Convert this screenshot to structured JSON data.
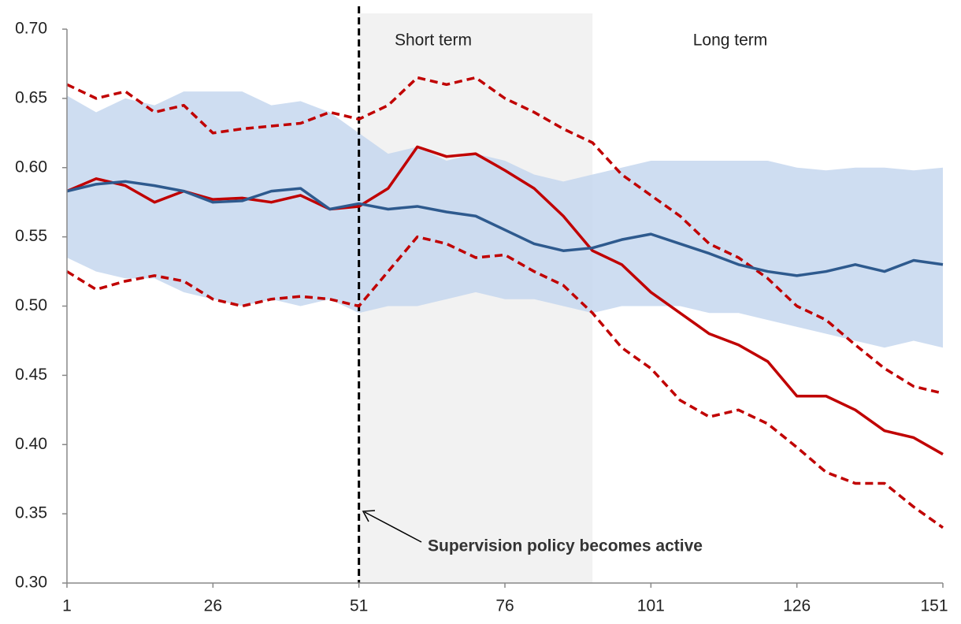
{
  "chart_data": {
    "type": "line",
    "x": [
      1,
      6,
      11,
      16,
      21,
      26,
      31,
      36,
      41,
      46,
      51,
      56,
      61,
      66,
      71,
      76,
      81,
      86,
      91,
      96,
      101,
      106,
      111,
      116,
      121,
      126,
      131,
      136,
      141,
      146,
      151
    ],
    "xlim": [
      1,
      151
    ],
    "xticks": [
      1,
      26,
      51,
      76,
      101,
      126,
      151
    ],
    "ylim": [
      0.3,
      0.7
    ],
    "yticks": [
      {
        "value": 0.3,
        "label": "0.30"
      },
      {
        "value": 0.35,
        "label": "0.35"
      },
      {
        "value": 0.4,
        "label": "0.40"
      },
      {
        "value": 0.45,
        "label": "0.45"
      },
      {
        "value": 0.5,
        "label": "0.50"
      },
      {
        "value": 0.55,
        "label": "0.55"
      },
      {
        "value": 0.6,
        "label": "0.60"
      },
      {
        "value": 0.65,
        "label": "0.65"
      },
      {
        "value": 0.7,
        "label": "0.70"
      }
    ],
    "band": {
      "color": "#c5d7ef",
      "upper": [
        0.652,
        0.64,
        0.65,
        0.645,
        0.655,
        0.655,
        0.655,
        0.645,
        0.648,
        0.64,
        0.625,
        0.61,
        0.615,
        0.605,
        0.61,
        0.605,
        0.595,
        0.59,
        0.595,
        0.6,
        0.605,
        0.605,
        0.605,
        0.605,
        0.605,
        0.6,
        0.598,
        0.6,
        0.6,
        0.598,
        0.6
      ],
      "lower": [
        0.535,
        0.525,
        0.52,
        0.52,
        0.51,
        0.505,
        0.5,
        0.505,
        0.5,
        0.505,
        0.495,
        0.5,
        0.5,
        0.505,
        0.51,
        0.505,
        0.505,
        0.5,
        0.495,
        0.5,
        0.5,
        0.5,
        0.495,
        0.495,
        0.49,
        0.485,
        0.48,
        0.475,
        0.47,
        0.475,
        0.47
      ]
    },
    "series": [
      {
        "color": "#c00000",
        "dashed": true,
        "values": [
          0.66,
          0.65,
          0.655,
          0.64,
          0.645,
          0.625,
          0.628,
          0.63,
          0.632,
          0.64,
          0.635,
          0.645,
          0.665,
          0.66,
          0.665,
          0.65,
          0.64,
          0.628,
          0.618,
          0.595,
          0.58,
          0.565,
          0.545,
          0.535,
          0.52,
          0.5,
          0.49,
          0.472,
          0.455,
          0.442,
          0.437
        ]
      },
      {
        "color": "#c00000",
        "dashed": true,
        "values": [
          0.525,
          0.512,
          0.518,
          0.522,
          0.518,
          0.505,
          0.5,
          0.505,
          0.507,
          0.505,
          0.5,
          0.525,
          0.55,
          0.545,
          0.535,
          0.537,
          0.525,
          0.515,
          0.495,
          0.47,
          0.455,
          0.432,
          0.42,
          0.425,
          0.415,
          0.398,
          0.38,
          0.372,
          0.372,
          0.355,
          0.34
        ]
      },
      {
        "color": "#c00000",
        "dashed": false,
        "values": [
          0.583,
          0.592,
          0.587,
          0.575,
          0.583,
          0.577,
          0.578,
          0.575,
          0.58,
          0.57,
          0.572,
          0.585,
          0.615,
          0.608,
          0.61,
          0.598,
          0.585,
          0.565,
          0.54,
          0.53,
          0.51,
          0.495,
          0.48,
          0.472,
          0.46,
          0.435,
          0.435,
          0.425,
          0.41,
          0.405,
          0.393
        ]
      },
      {
        "color": "#2e5a8e",
        "dashed": false,
        "values": [
          0.583,
          0.588,
          0.59,
          0.587,
          0.583,
          0.575,
          0.576,
          0.583,
          0.585,
          0.57,
          0.574,
          0.57,
          0.572,
          0.568,
          0.565,
          0.555,
          0.545,
          0.54,
          0.542,
          0.548,
          0.552,
          0.545,
          0.538,
          0.53,
          0.525,
          0.522,
          0.525,
          0.53,
          0.525,
          0.533,
          0.53
        ]
      }
    ],
    "short_term_span": [
      51,
      91
    ],
    "policy_x": 51,
    "short_term_label": "Short term",
    "long_term_label": "Long term",
    "policy_annotation": "Supervision policy becomes active"
  }
}
